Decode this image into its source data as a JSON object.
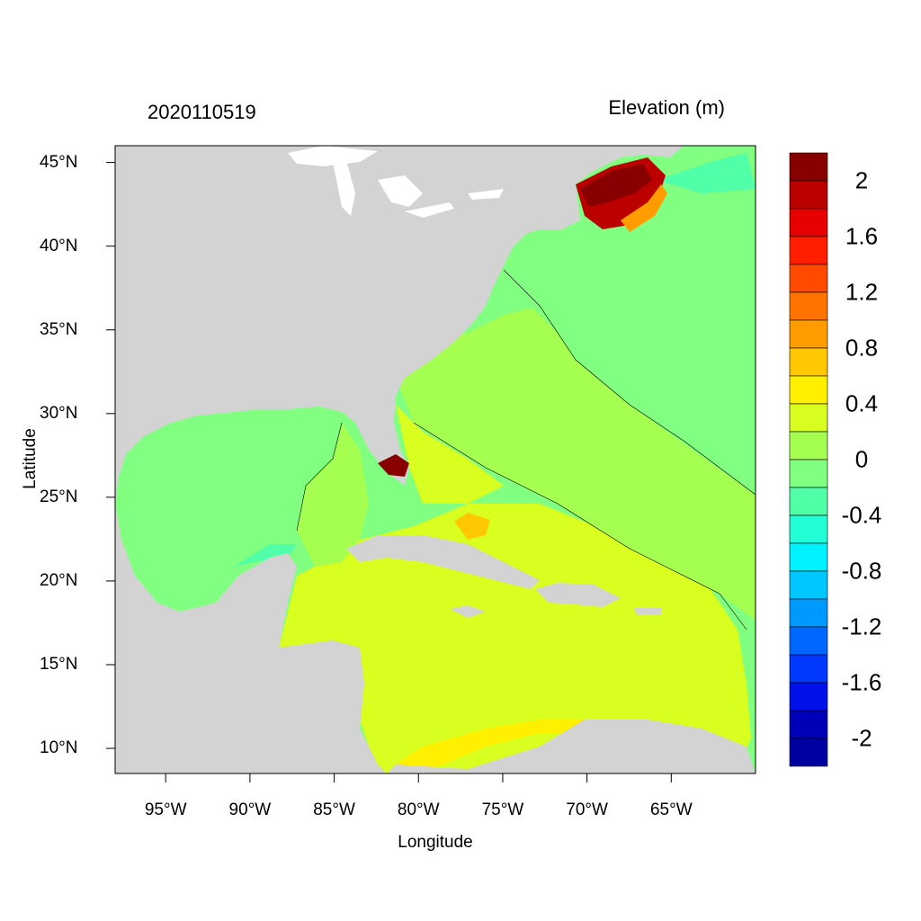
{
  "header": {
    "time_label": "2020110519",
    "variable_label": "Elevation (m)"
  },
  "axes": {
    "xlabel": "Longitude",
    "ylabel": "Latitude",
    "xticks": [
      "95°W",
      "90°W",
      "85°W",
      "80°W",
      "75°W",
      "70°W",
      "65°W"
    ],
    "xtick_values": [
      -95,
      -90,
      -85,
      -80,
      -75,
      -70,
      -65
    ],
    "yticks": [
      "45°N",
      "40°N",
      "35°N",
      "30°N",
      "25°N",
      "20°N",
      "15°N",
      "10°N"
    ],
    "ytick_values": [
      45,
      40,
      35,
      30,
      25,
      20,
      15,
      10
    ],
    "lon_range": [
      -98,
      -60
    ],
    "lat_range": [
      8.5,
      46
    ]
  },
  "colorbar": {
    "labels": [
      "2",
      "1.6",
      "1.2",
      "0.8",
      "0.4",
      "0",
      "-0.4",
      "-0.8",
      "-1.2",
      "-1.6",
      "-2"
    ],
    "colors": [
      "#880000",
      "#bb0000",
      "#e60000",
      "#ff1e00",
      "#ff4a00",
      "#ff7300",
      "#ff9d00",
      "#ffc800",
      "#fff000",
      "#d8ff20",
      "#a5ff50",
      "#80ff80",
      "#50ffa8",
      "#22ffd6",
      "#00f2ff",
      "#00c8ff",
      "#009aff",
      "#0068ff",
      "#0038ff",
      "#0010e8",
      "#0000b8",
      "#0000a0"
    ]
  },
  "colors": {
    "land": "#d3d3d3",
    "water_lakes": "#ffffff",
    "frame": "#000000"
  }
}
